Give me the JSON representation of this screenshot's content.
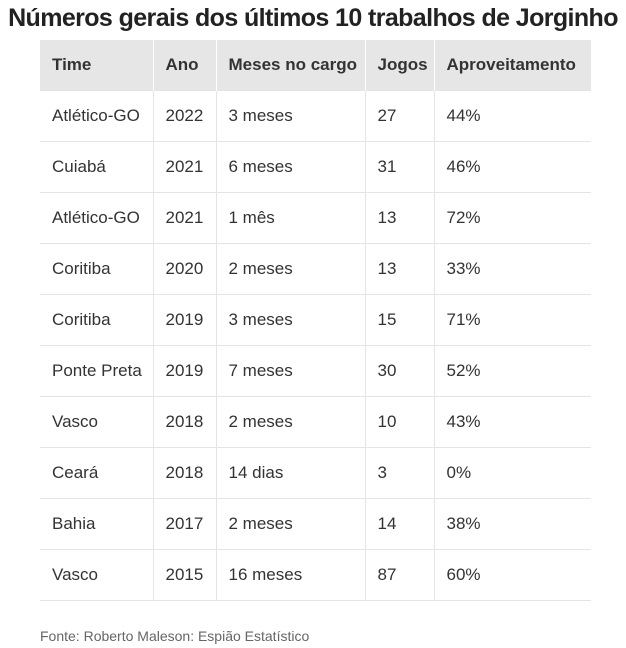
{
  "title": "Números gerais dos últimos 10 trabalhos de Jorginho",
  "table": {
    "headers": [
      "Time",
      "Ano",
      "Meses no cargo",
      "Jogos",
      "Aproveitamento"
    ],
    "rows": [
      [
        "Atlético-GO",
        "2022",
        "3 meses",
        "27",
        "44%"
      ],
      [
        "Cuiabá",
        "2021",
        "6 meses",
        "31",
        "46%"
      ],
      [
        "Atlético-GO",
        "2021",
        "1 mês",
        "13",
        "72%"
      ],
      [
        "Coritiba",
        "2020",
        "2 meses",
        "13",
        "33%"
      ],
      [
        "Coritiba",
        "2019",
        "3 meses",
        "15",
        "71%"
      ],
      [
        "Ponte Preta",
        "2019",
        "7 meses",
        "30",
        "52%"
      ],
      [
        "Vasco",
        "2018",
        "2 meses",
        "10",
        "43%"
      ],
      [
        "Ceará",
        "2018",
        "14 dias",
        "3",
        "0%"
      ],
      [
        "Bahia",
        "2017",
        "2 meses",
        "14",
        "38%"
      ],
      [
        "Vasco",
        "2015",
        "16 meses",
        "87",
        "60%"
      ]
    ]
  },
  "source": "Fonte: Roberto Maleson: Espião Estatístico"
}
